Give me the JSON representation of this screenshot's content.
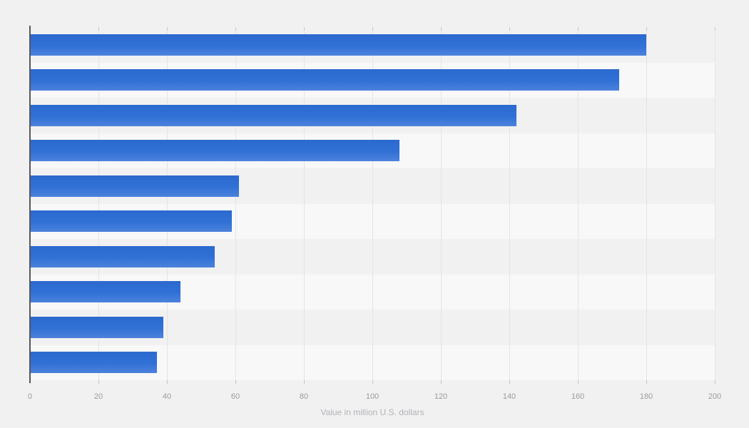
{
  "chart_data": {
    "type": "bar",
    "orientation": "horizontal",
    "title": "",
    "categories": [
      "",
      "",
      "",
      "",
      "",
      "",
      "",
      "",
      "",
      ""
    ],
    "values": [
      180,
      172,
      142,
      108,
      61,
      59,
      54,
      44,
      39,
      37
    ],
    "xlabel": "Value in million U.S. dollars",
    "ylabel": "",
    "xlim": [
      0,
      200
    ],
    "xticks": [
      0,
      20,
      40,
      60,
      80,
      100,
      120,
      140,
      160,
      180,
      200
    ],
    "xtick_labels": [
      "0",
      "20",
      "40",
      "60",
      "80",
      "100",
      "120",
      "140",
      "160",
      "180",
      "200"
    ],
    "grid": true,
    "legend": false,
    "row_striping": true
  },
  "colors": {
    "page_background": "#f1f1f2",
    "stripe_light": "#f8f8f9",
    "stripe_dark": "#f1f1f2",
    "gridline": "#e4e4e7",
    "gridline_cap": "#c7c7ca",
    "axis_line": "#55565b",
    "tick_mark": "#c2c2c6",
    "bar_top": "#2b69ce",
    "bar_mid": "#3171d5",
    "bar_bottom": "#4c82dc",
    "tick_label_text": "#9b9b9f",
    "axis_title_text": "#b3b3b8"
  }
}
